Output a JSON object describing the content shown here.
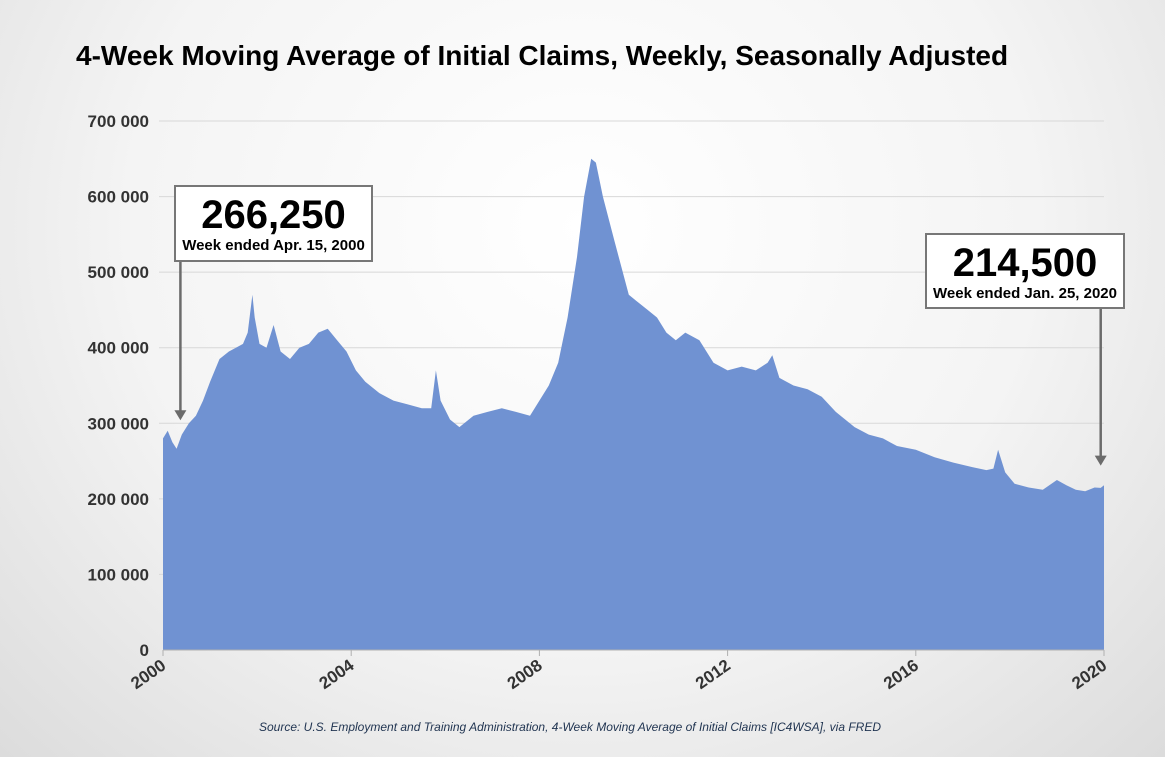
{
  "chart_data": {
    "type": "area",
    "title": "4-Week Moving Average of Initial Claims, Weekly, Seasonally Adjusted",
    "xlabel": "",
    "ylabel": "",
    "xlim": [
      2000,
      2020
    ],
    "ylim": [
      0,
      700000
    ],
    "y_ticks": [
      0,
      100000,
      200000,
      300000,
      400000,
      500000,
      600000,
      700000
    ],
    "y_tick_labels": [
      "0",
      "100 000",
      "200 000",
      "300 000",
      "400 000",
      "500 000",
      "600 000",
      "700 000"
    ],
    "x_ticks": [
      2000,
      2004,
      2008,
      2012,
      2016,
      2020
    ],
    "x_tick_labels": [
      "2000",
      "2004",
      "2008",
      "2012",
      "2016",
      "2020"
    ],
    "grid": true,
    "series": [
      {
        "name": "IC4WSA",
        "color": "#7092d2",
        "x": [
          2000.0,
          2000.1,
          2000.2,
          2000.29,
          2000.4,
          2000.55,
          2000.7,
          2000.85,
          2001.0,
          2001.2,
          2001.4,
          2001.55,
          2001.7,
          2001.8,
          2001.9,
          2001.95,
          2002.05,
          2002.2,
          2002.35,
          2002.5,
          2002.7,
          2002.9,
          2003.1,
          2003.3,
          2003.5,
          2003.7,
          2003.9,
          2004.1,
          2004.3,
          2004.6,
          2004.9,
          2005.2,
          2005.5,
          2005.7,
          2005.8,
          2005.9,
          2006.1,
          2006.3,
          2006.6,
          2006.9,
          2007.2,
          2007.5,
          2007.8,
          2008.0,
          2008.2,
          2008.4,
          2008.6,
          2008.8,
          2008.95,
          2009.1,
          2009.2,
          2009.35,
          2009.6,
          2009.9,
          2010.1,
          2010.3,
          2010.5,
          2010.7,
          2010.9,
          2011.1,
          2011.4,
          2011.7,
          2012.0,
          2012.3,
          2012.6,
          2012.85,
          2012.95,
          2013.1,
          2013.4,
          2013.7,
          2014.0,
          2014.3,
          2014.7,
          2015.0,
          2015.3,
          2015.6,
          2016.0,
          2016.4,
          2016.8,
          2017.2,
          2017.5,
          2017.65,
          2017.75,
          2017.9,
          2018.1,
          2018.4,
          2018.7,
          2019.0,
          2019.2,
          2019.4,
          2019.6,
          2019.8,
          2019.93,
          2020.0
        ],
        "values": [
          280000,
          290000,
          275000,
          266250,
          285000,
          300000,
          310000,
          330000,
          355000,
          385000,
          395000,
          400000,
          405000,
          420000,
          470000,
          440000,
          405000,
          400000,
          430000,
          395000,
          385000,
          400000,
          405000,
          420000,
          425000,
          410000,
          395000,
          370000,
          355000,
          340000,
          330000,
          325000,
          320000,
          320000,
          370000,
          330000,
          305000,
          295000,
          310000,
          315000,
          320000,
          315000,
          310000,
          330000,
          350000,
          380000,
          440000,
          520000,
          600000,
          650000,
          645000,
          600000,
          540000,
          470000,
          460000,
          450000,
          440000,
          420000,
          410000,
          420000,
          410000,
          380000,
          370000,
          375000,
          370000,
          380000,
          390000,
          360000,
          350000,
          345000,
          335000,
          315000,
          295000,
          285000,
          280000,
          270000,
          265000,
          255000,
          248000,
          242000,
          238000,
          240000,
          265000,
          235000,
          220000,
          215000,
          212000,
          225000,
          218000,
          212000,
          210000,
          215000,
          214500,
          218000
        ]
      }
    ]
  },
  "callouts": {
    "start": {
      "value": "266,250",
      "caption": "Week ended Apr. 15, 2000"
    },
    "end": {
      "value": "214,500",
      "caption": "Week ended Jan. 25, 2020"
    }
  },
  "source": "Source: U.S. Employment and Training Administration, 4-Week Moving Average of Initial Claims [IC4WSA], via FRED",
  "colors": {
    "area": "#7092d2",
    "grid": "#d8d8d8",
    "arrow": "#6b6b6b",
    "axis": "#b0b0b0"
  }
}
